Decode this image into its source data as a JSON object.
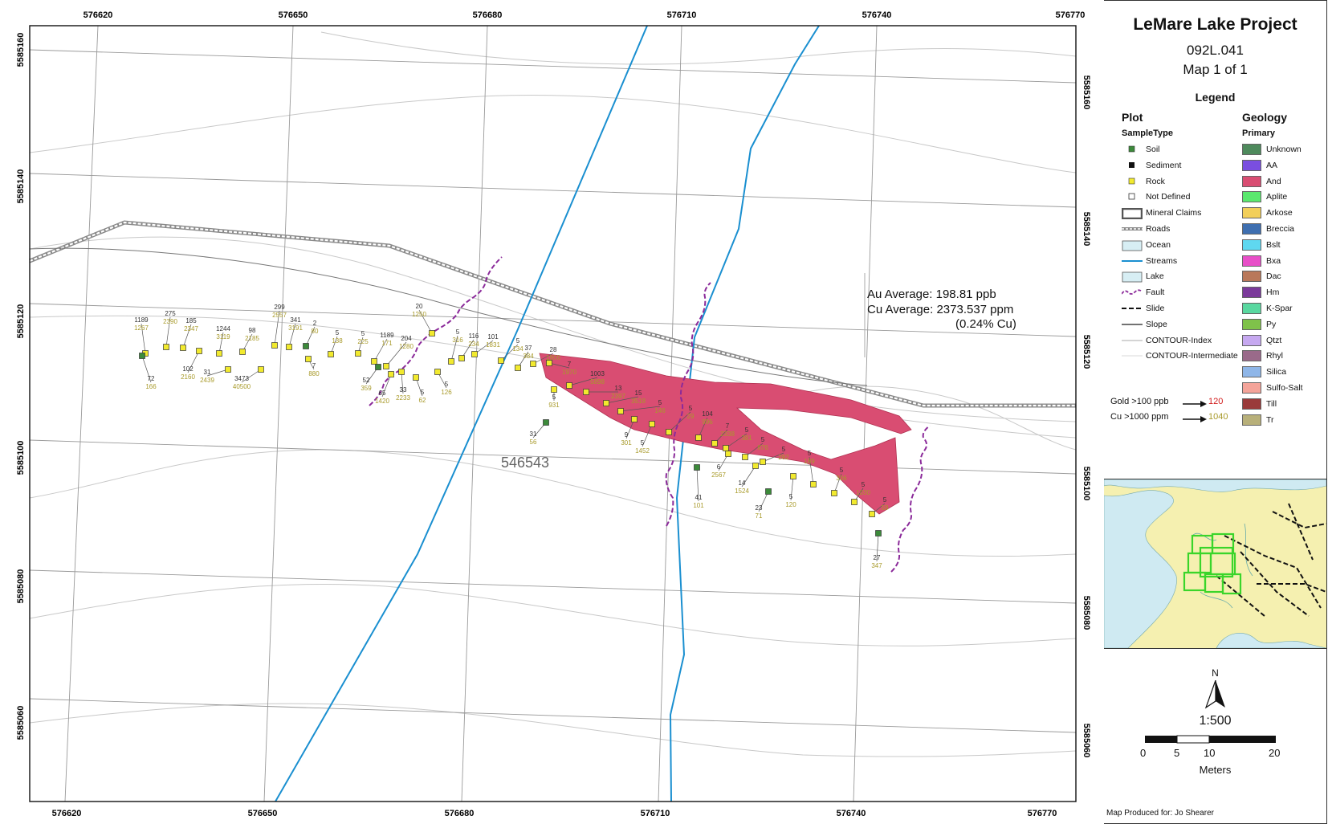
{
  "map": {
    "x_top_labels": [
      "576620",
      "576650",
      "576680",
      "576710",
      "576740",
      "576770"
    ],
    "x_bottom_labels": [
      "576620",
      "576650",
      "576680",
      "576710",
      "576740",
      "576770"
    ],
    "y_left_labels": [
      "5585160",
      "5585140",
      "5585120",
      "5585100",
      "5585080",
      "5585060"
    ],
    "y_right_labels": [
      "5585160",
      "5585140",
      "5585120",
      "5585100",
      "5585080",
      "5585060"
    ],
    "claim_label": "546543",
    "au_average": "Au Average: 198.81 ppb",
    "cu_average": "Cu Average: 2373.537 ppm",
    "cu_percent": "(0.24% Cu)",
    "samples": [
      {
        "id": "s1",
        "au": "1189",
        "cu": "1267",
        "type": "rock"
      },
      {
        "id": "s2",
        "au": "72",
        "cu": "166",
        "type": "soil"
      },
      {
        "id": "s3",
        "au": "275",
        "cu": "2390",
        "type": "rock"
      },
      {
        "id": "s4",
        "au": "185",
        "cu": "2347",
        "type": "rock"
      },
      {
        "id": "s5",
        "au": "102",
        "cu": "2160",
        "type": "rock"
      },
      {
        "id": "s6",
        "au": "1244",
        "cu": "3119",
        "type": "rock"
      },
      {
        "id": "s7",
        "au": "31",
        "cu": "2439",
        "type": "rock"
      },
      {
        "id": "s8",
        "au": "98",
        "cu": "2185",
        "type": "rock"
      },
      {
        "id": "s9",
        "au": "3473",
        "cu": "40500",
        "type": "rock"
      },
      {
        "id": "s10",
        "au": "299",
        "cu": "2557",
        "type": "rock"
      },
      {
        "id": "s11",
        "au": "341",
        "cu": "3191",
        "type": "rock"
      },
      {
        "id": "s12",
        "au": "2",
        "cu": "80",
        "type": "soil"
      },
      {
        "id": "s13",
        "au": "7",
        "cu": "880",
        "type": "rock"
      },
      {
        "id": "s14",
        "au": "5",
        "cu": "138",
        "type": "rock"
      },
      {
        "id": "s15",
        "au": "5",
        "cu": "225",
        "type": "rock"
      },
      {
        "id": "s16",
        "au": "1189",
        "cu": "171",
        "type": "rock"
      },
      {
        "id": "s17",
        "au": "204",
        "cu": "1280",
        "type": "rock"
      },
      {
        "id": "s18",
        "au": "52",
        "cu": "359",
        "type": "soil"
      },
      {
        "id": "s19",
        "au": "65",
        "cu": "1420",
        "type": "rock"
      },
      {
        "id": "s20",
        "au": "33",
        "cu": "2233",
        "type": "rock"
      },
      {
        "id": "s21",
        "au": "5",
        "cu": "62",
        "type": "rock"
      },
      {
        "id": "s22",
        "au": "20",
        "cu": "1250",
        "type": "rock"
      },
      {
        "id": "s23",
        "au": "5",
        "cu": "316",
        "type": "rock"
      },
      {
        "id": "s24",
        "au": "5",
        "cu": "126",
        "type": "rock"
      },
      {
        "id": "s25",
        "au": "116",
        "cu": "234",
        "type": "rock"
      },
      {
        "id": "s26",
        "au": "101",
        "cu": "1831",
        "type": "rock"
      },
      {
        "id": "s27",
        "au": "5",
        "cu": "134",
        "type": "rock"
      },
      {
        "id": "s28",
        "au": "37",
        "cu": "384",
        "type": "rock"
      },
      {
        "id": "s29",
        "au": "28",
        "cu": "1906",
        "type": "rock"
      },
      {
        "id": "s30",
        "au": "7",
        "cu": "1970",
        "type": "rock"
      },
      {
        "id": "s31",
        "au": "5",
        "cu": "931",
        "type": "rock"
      },
      {
        "id": "s32",
        "au": "31",
        "cu": "56",
        "type": "soil"
      },
      {
        "id": "s33",
        "au": "1003",
        "cu": "5898",
        "type": "rock"
      },
      {
        "id": "s34",
        "au": "13",
        "cu": "2397",
        "type": "rock"
      },
      {
        "id": "s35",
        "au": "15",
        "cu": "3518",
        "type": "rock"
      },
      {
        "id": "s36",
        "au": "5",
        "cu": "146",
        "type": "rock"
      },
      {
        "id": "s37",
        "au": "9",
        "cu": "301",
        "type": "rock"
      },
      {
        "id": "s38",
        "au": "5",
        "cu": "1452",
        "type": "rock"
      },
      {
        "id": "s39",
        "au": "5",
        "cu": "29",
        "type": "rock"
      },
      {
        "id": "s40",
        "au": "104",
        "cu": "996",
        "type": "rock"
      },
      {
        "id": "s41",
        "au": "7",
        "cu": "2338",
        "type": "rock"
      },
      {
        "id": "s42",
        "au": "5",
        "cu": "381",
        "type": "rock"
      },
      {
        "id": "s43",
        "au": "5",
        "cu": "876",
        "type": "rock"
      },
      {
        "id": "s44",
        "au": "5",
        "cu": "282",
        "type": "rock"
      },
      {
        "id": "s45",
        "au": "6",
        "cu": "2567",
        "type": "rock"
      },
      {
        "id": "s46",
        "au": "41",
        "cu": "101",
        "type": "soil"
      },
      {
        "id": "s47",
        "au": "14",
        "cu": "1524",
        "type": "rock"
      },
      {
        "id": "s48",
        "au": "23",
        "cu": "71",
        "type": "soil"
      },
      {
        "id": "s49",
        "au": "5",
        "cu": "120",
        "type": "rock"
      },
      {
        "id": "s50",
        "au": "5",
        "cu": "189",
        "type": "rock"
      },
      {
        "id": "s51",
        "au": "5",
        "cu": "306",
        "type": "rock"
      },
      {
        "id": "s52",
        "au": "5",
        "cu": "1030",
        "type": "rock"
      },
      {
        "id": "s53",
        "au": "5",
        "cu": "59",
        "type": "rock"
      },
      {
        "id": "s54",
        "au": "27",
        "cu": "347",
        "type": "soil"
      }
    ]
  },
  "panel": {
    "title": "LeMare Lake Project",
    "map_code": "092L.041",
    "map_of": "Map 1 of 1",
    "legend_title": "Legend",
    "plot_header": "Plot",
    "sampletype_header": "SampleType",
    "geology_header": "Geology",
    "primary_header": "Primary",
    "plot_items": [
      {
        "label": "Soil",
        "sym": "soil"
      },
      {
        "label": "Sediment",
        "sym": "sediment"
      },
      {
        "label": "Rock",
        "sym": "rock"
      },
      {
        "label": "Not Defined",
        "sym": "notdefined"
      },
      {
        "label": "Mineral Claims",
        "sym": "claims"
      },
      {
        "label": "Roads",
        "sym": "roads"
      },
      {
        "label": "Ocean",
        "sym": "ocean"
      },
      {
        "label": "Streams",
        "sym": "streams"
      },
      {
        "label": "Lake",
        "sym": "lake"
      },
      {
        "label": "Fault",
        "sym": "fault"
      },
      {
        "label": "Slide",
        "sym": "slide"
      },
      {
        "label": "Slope",
        "sym": "slope"
      },
      {
        "label": "CONTOUR-Index",
        "sym": "contour-index"
      },
      {
        "label": "CONTOUR-Intermediate",
        "sym": "contour-intermediate"
      }
    ],
    "geology_items": [
      {
        "label": "Unknown",
        "color": "#4e8a5c"
      },
      {
        "label": "AA",
        "color": "#7a4ee0"
      },
      {
        "label": "And",
        "color": "#d94d72"
      },
      {
        "label": "Aplite",
        "color": "#5ae86e"
      },
      {
        "label": "Arkose",
        "color": "#f2cf5a"
      },
      {
        "label": "Breccia",
        "color": "#3f6fb0"
      },
      {
        "label": "Bslt",
        "color": "#5fd8f0"
      },
      {
        "label": "Bxa",
        "color": "#e84fc8"
      },
      {
        "label": "Dac",
        "color": "#b9785a"
      },
      {
        "label": "Hm",
        "color": "#7b3a9a"
      },
      {
        "label": "K-Spar",
        "color": "#59d8a0"
      },
      {
        "label": "Py",
        "color": "#7fc24a"
      },
      {
        "label": "Qtzt",
        "color": "#c6a8f0"
      },
      {
        "label": "Rhyl",
        "color": "#9a6a8a"
      },
      {
        "label": "Silica",
        "color": "#8fb6e8"
      },
      {
        "label": "Sulfo-Salt",
        "color": "#f4a49a"
      },
      {
        "label": "Till",
        "color": "#9a3a3a"
      },
      {
        "label": "Tr",
        "color": "#b8b07a"
      }
    ],
    "gold_threshold": "Gold >100 ppb",
    "gold_example": "120",
    "cu_threshold": "Cu >1000 ppm",
    "cu_example": "1040",
    "north": "N",
    "scale": "1:500",
    "scale_ticks": [
      "0",
      "5",
      "10",
      "20"
    ],
    "scale_units": "Meters",
    "produced_for": "Map Produced for: Jo Shearer"
  },
  "colors": {
    "stream": "#1a8fd0",
    "andesite": "#d94d72",
    "fault": "#8b2a9a",
    "rock": "#f2ea2e",
    "soil": "#3c8a3a",
    "inset_land": "#f5f0b0",
    "inset_water": "#cfeaf2",
    "claims_green": "#3ad52a"
  }
}
